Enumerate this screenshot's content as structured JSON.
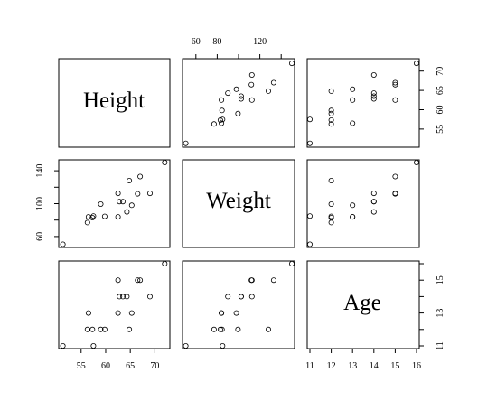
{
  "chart_data": {
    "type": "scatter",
    "variables": [
      {
        "name": "Height",
        "ticks": [
          55,
          60,
          65,
          70
        ],
        "range": [
          51,
          72.5
        ]
      },
      {
        "name": "Weight",
        "ticks": [
          60,
          80,
          100,
          120,
          140
        ],
        "range": [
          50,
          150
        ]
      },
      {
        "name": "Age",
        "ticks": [
          11,
          12,
          13,
          14,
          15,
          16
        ],
        "range": [
          11,
          16
        ]
      }
    ],
    "tick_labels": {
      "Height": [
        "55",
        "60",
        "65",
        "70"
      ],
      "Weight_top": [
        "60",
        "80",
        "120"
      ],
      "Weight_left": [
        "60",
        "100",
        "140"
      ],
      "Age_right": [
        "11",
        "13",
        "15"
      ],
      "Age_bottom": [
        "11",
        "12",
        "13",
        "14",
        "15",
        "16"
      ]
    },
    "points": [
      {
        "height": 51.3,
        "weight": 50.5,
        "age": 11
      },
      {
        "height": 56.3,
        "weight": 77.0,
        "age": 12
      },
      {
        "height": 56.5,
        "weight": 84.0,
        "age": 13
      },
      {
        "height": 57.3,
        "weight": 83.0,
        "age": 12
      },
      {
        "height": 57.5,
        "weight": 85.0,
        "age": 11
      },
      {
        "height": 59.0,
        "weight": 99.5,
        "age": 12
      },
      {
        "height": 59.8,
        "weight": 84.5,
        "age": 12
      },
      {
        "height": 62.5,
        "weight": 112.5,
        "age": 15
      },
      {
        "height": 62.5,
        "weight": 84.0,
        "age": 13
      },
      {
        "height": 62.8,
        "weight": 102.5,
        "age": 14
      },
      {
        "height": 63.5,
        "weight": 102.5,
        "age": 14
      },
      {
        "height": 64.3,
        "weight": 90.0,
        "age": 14
      },
      {
        "height": 64.8,
        "weight": 128.0,
        "age": 12
      },
      {
        "height": 65.3,
        "weight": 98.0,
        "age": 13
      },
      {
        "height": 66.5,
        "weight": 112.0,
        "age": 15
      },
      {
        "height": 67.0,
        "weight": 133.0,
        "age": 15
      },
      {
        "height": 69.0,
        "weight": 112.5,
        "age": 14
      },
      {
        "height": 72.0,
        "weight": 150.0,
        "age": 16
      }
    ]
  }
}
